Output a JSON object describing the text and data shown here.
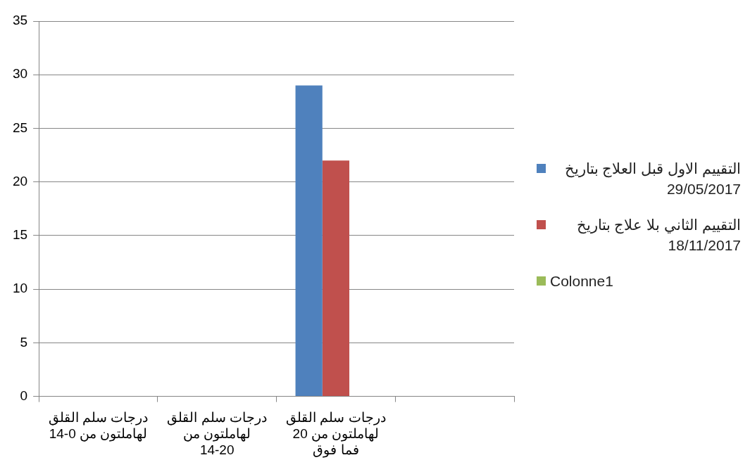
{
  "chart_data": {
    "type": "bar",
    "categories": [
      "درجات سلم القلق لهاملتون من 0-14",
      "درجات سلم القلق لهاملتون من 14-20",
      "درجات سلم القلق لهاملتون من 20 فما فوق",
      null
    ],
    "series": [
      {
        "name": "التقييم الاول قبل العلاج بتاريخ 29/05/2017",
        "color": "#4f81bd",
        "values": [
          null,
          null,
          29,
          null
        ]
      },
      {
        "name": "التقييم الثاني بلا علاج بتاريخ 18/11/2017",
        "color": "#c0504d",
        "values": [
          null,
          null,
          22,
          null
        ]
      },
      {
        "name": "Colonne1",
        "color": "#9bbb59",
        "values": [
          null,
          null,
          null,
          null
        ]
      }
    ],
    "ylim": [
      0,
      35
    ],
    "yticks": [
      0,
      5,
      10,
      15,
      20,
      25,
      30,
      35
    ],
    "grid": "y",
    "legend": "right"
  }
}
